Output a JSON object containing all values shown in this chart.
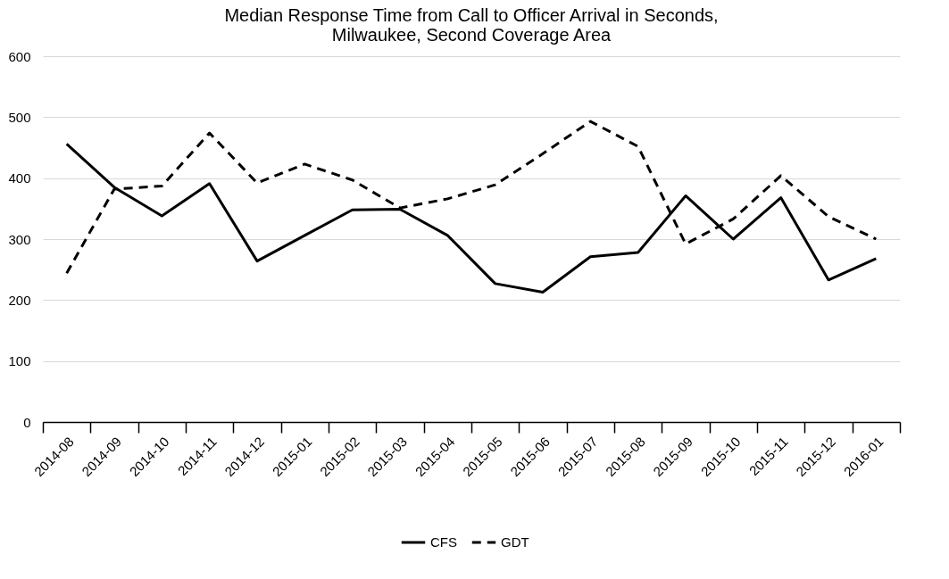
{
  "chart_data": {
    "type": "line",
    "title": "Median Response Time from Call to Officer Arrival in Seconds, Milwaukee, Second Coverage Area",
    "categories": [
      "2014-08",
      "2014-09",
      "2014-10",
      "2014-11",
      "2014-12",
      "2015-01",
      "2015-02",
      "2015-03",
      "2015-04",
      "2015-05",
      "2015-06",
      "2015-07",
      "2015-08",
      "2015-09",
      "2015-10",
      "2015-11",
      "2015-12",
      "2016-01"
    ],
    "series": [
      {
        "name": "CFS",
        "color": "#000000",
        "line_style": "solid",
        "values": [
          456,
          385,
          338,
          391,
          264,
          306,
          348,
          349,
          306,
          227,
          213,
          271,
          278,
          371,
          300,
          368,
          233,
          268
        ]
      },
      {
        "name": "GDT",
        "color": "#000000",
        "line_style": "dashed",
        "values": [
          244,
          382,
          387,
          474,
          392,
          423,
          397,
          351,
          366,
          389,
          440,
          493,
          452,
          292,
          333,
          404,
          337,
          300
        ]
      }
    ],
    "ylim": [
      0,
      600
    ],
    "yticks": [
      0,
      100,
      200,
      300,
      400,
      500,
      600
    ],
    "grid": "y",
    "legend": "bottom"
  }
}
